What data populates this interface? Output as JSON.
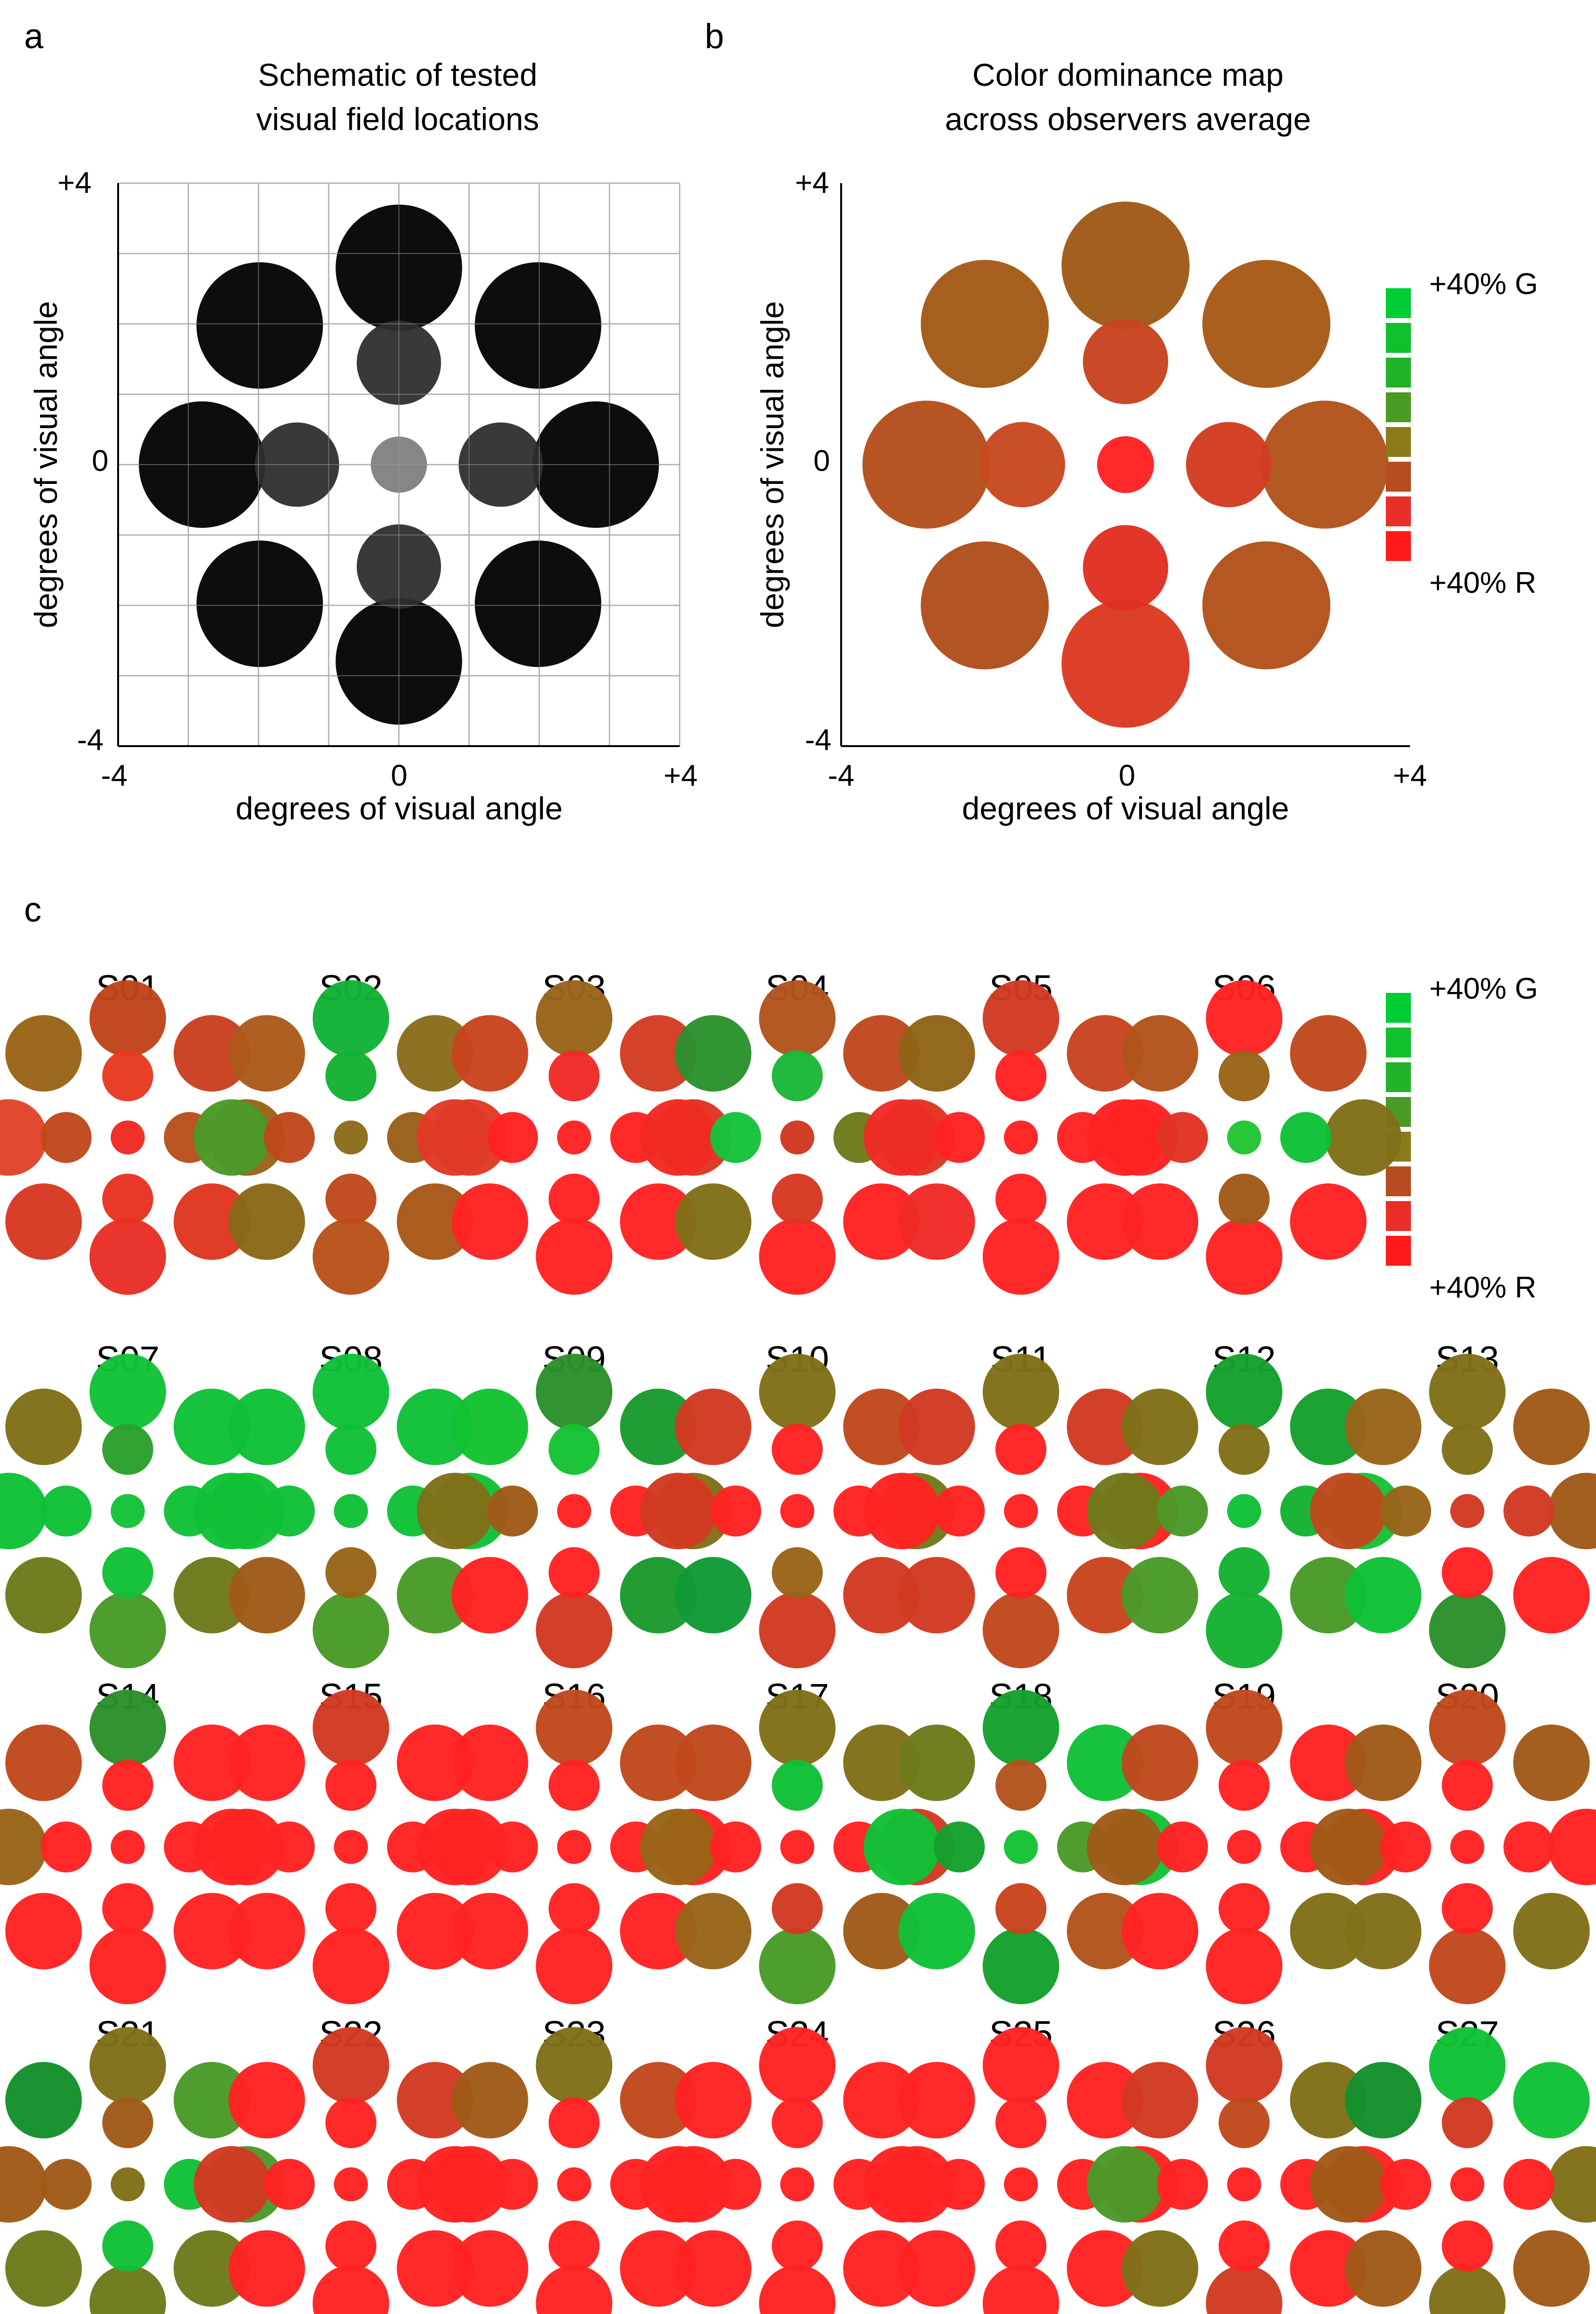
{
  "panels": {
    "a": {
      "letter": "a",
      "title_line1": "Schematic of tested",
      "title_line2": "visual field locations",
      "xlabel": "degrees of visual angle",
      "ylabel": "degrees of visual angle",
      "x_ticks": [
        "-4",
        "0",
        "+4"
      ],
      "y_ticks": [
        "+4",
        "0",
        "-4"
      ]
    },
    "b": {
      "letter": "b",
      "title_line1": "Color dominance map",
      "title_line2": "across observers average",
      "xlabel": "degrees of visual angle",
      "ylabel": "degrees of visual angle",
      "x_ticks": [
        "-4",
        "0",
        "+4"
      ],
      "y_ticks": [
        "+4",
        "0",
        "-4"
      ]
    },
    "c": {
      "letter": "c"
    }
  },
  "legend": {
    "top_label": "+40% G",
    "bottom_label": "+40% R",
    "colors": [
      "#00cc33",
      "#10c02c",
      "#22b22a",
      "#4a9a24",
      "#8a7a1a",
      "#b84c20",
      "#e82e26",
      "#ff1a1a"
    ]
  },
  "chart_data": {
    "type": "dominance_map",
    "axis_range_deg": [
      -4,
      4
    ],
    "location_order": [
      "outer_N",
      "outer_NE",
      "outer_E",
      "outer_SE",
      "outer_S",
      "outer_SW",
      "outer_W",
      "outer_NW",
      "inner_N",
      "inner_E",
      "inner_S",
      "inner_W",
      "center"
    ],
    "locations": [
      {
        "name": "outer_N",
        "x_deg": 0.0,
        "y_deg": 2.8,
        "radius_deg": 0.9
      },
      {
        "name": "outer_NE",
        "x_deg": 1.98,
        "y_deg": 1.98,
        "radius_deg": 0.9
      },
      {
        "name": "outer_E",
        "x_deg": 2.8,
        "y_deg": 0.0,
        "radius_deg": 0.9
      },
      {
        "name": "outer_SE",
        "x_deg": 1.98,
        "y_deg": -1.98,
        "radius_deg": 0.9
      },
      {
        "name": "outer_S",
        "x_deg": 0.0,
        "y_deg": -2.8,
        "radius_deg": 0.9
      },
      {
        "name": "outer_SW",
        "x_deg": -1.98,
        "y_deg": -1.98,
        "radius_deg": 0.9
      },
      {
        "name": "outer_W",
        "x_deg": -2.8,
        "y_deg": 0.0,
        "radius_deg": 0.9
      },
      {
        "name": "outer_NW",
        "x_deg": -1.98,
        "y_deg": 1.98,
        "radius_deg": 0.9
      },
      {
        "name": "inner_N",
        "x_deg": 0.0,
        "y_deg": 1.45,
        "radius_deg": 0.6
      },
      {
        "name": "inner_E",
        "x_deg": 1.45,
        "y_deg": 0.0,
        "radius_deg": 0.6
      },
      {
        "name": "inner_S",
        "x_deg": 0.0,
        "y_deg": -1.45,
        "radius_deg": 0.6
      },
      {
        "name": "inner_W",
        "x_deg": -1.45,
        "y_deg": 0.0,
        "radius_deg": 0.6
      },
      {
        "name": "center",
        "x_deg": 0.0,
        "y_deg": 0.0,
        "radius_deg": 0.4
      }
    ],
    "schematic_gray": [
      "#000000",
      "#000000",
      "#000000",
      "#000000",
      "#000000",
      "#000000",
      "#000000",
      "#000000",
      "#2e2e2e",
      "#2e2e2e",
      "#2e2e2e",
      "#2e2e2e",
      "#7f7f7f"
    ],
    "average": [
      "#a05a18",
      "#a85a18",
      "#b2541c",
      "#b2521c",
      "#dc3a22",
      "#b04e1c",
      "#b4501c",
      "#a45a18",
      "#c84420",
      "#d23c20",
      "#e03022",
      "#c84820",
      "#ff2222"
    ],
    "subjects": [
      {
        "id": "S01",
        "colors": [
          "#c0441c",
          "#c84020",
          "#986418",
          "#e03620",
          "#e82e26",
          "#d83822",
          "#e0442a",
          "#9a6418",
          "#e83a22",
          "#b8501c",
          "#e83222",
          "#c0481c",
          "#f02a22"
        ]
      },
      {
        "id": "S02",
        "colors": [
          "#12b236",
          "#8a6c1c",
          "#e03a26",
          "#a85818",
          "#b8521c",
          "#8a6818",
          "#4a9a28",
          "#ac5a1a",
          "#14b232",
          "#9a5e1a",
          "#c0481c",
          "#c0481c",
          "#8a6c1a"
        ]
      },
      {
        "id": "S03",
        "colors": [
          "#986418",
          "#d23c22",
          "#e03424",
          "#ff2222",
          "#ff2222",
          "#ff2222",
          "#e03a26",
          "#c8441e",
          "#f02a26",
          "#ff2222",
          "#ff2222",
          "#ff2222",
          "#ff2222"
        ]
      },
      {
        "id": "S04",
        "colors": [
          "#b2541c",
          "#c0481c",
          "#e03424",
          "#ff2222",
          "#ff2222",
          "#807018",
          "#f02a22",
          "#2a922c",
          "#1ab838",
          "#6e7a1c",
          "#d83822",
          "#16c23c",
          "#d03820"
        ]
      },
      {
        "id": "S05",
        "colors": [
          "#d23a22",
          "#c84420",
          "#ff2222",
          "#ff2222",
          "#ff2222",
          "#f02a26",
          "#f02a26",
          "#906418",
          "#ff2222",
          "#ff2222",
          "#ff2222",
          "#ff2222",
          "#ff2222"
        ]
      },
      {
        "id": "S06",
        "colors": [
          "#ff2222",
          "#c0481c",
          "#807018",
          "#ff2222",
          "#ff2222",
          "#ff2222",
          "#ff2222",
          "#b2541c",
          "#9a6418",
          "#10c036",
          "#a05a18",
          "#e03424",
          "#22c432"
        ]
      },
      {
        "id": "S07",
        "colors": [
          "#10c236",
          "#10c036",
          "#10c036",
          "#6e7a1c",
          "#4a9a28",
          "#6e7a1c",
          "#10c036",
          "#807018",
          "#2aa02c",
          "#10c036",
          "#10c036",
          "#10c036",
          "#14c236"
        ]
      },
      {
        "id": "S08",
        "colors": [
          "#10c036",
          "#10c036",
          "#10c036",
          "#4a9a28",
          "#4a9a28",
          "#a05a18",
          "#10c036",
          "#10c036",
          "#10c036",
          "#10c036",
          "#986418",
          "#10c036",
          "#10c036"
        ]
      },
      {
        "id": "S09",
        "colors": [
          "#2a902a",
          "#1a9a30",
          "#807018",
          "#1a9a2c",
          "#d23a22",
          "#ff2222",
          "#807018",
          "#14c230",
          "#14c232",
          "#ff2222",
          "#ff2222",
          "#a05a18",
          "#ff2222"
        ]
      },
      {
        "id": "S10",
        "colors": [
          "#807018",
          "#c0481c",
          "#6e7a1c",
          "#d23a22",
          "#d23a22",
          "#109a36",
          "#d23a22",
          "#d23a22",
          "#ff2222",
          "#ff2222",
          "#986418",
          "#ff2222",
          "#ff2222"
        ]
      },
      {
        "id": "S11",
        "colors": [
          "#807018",
          "#d23a22",
          "#ff2222",
          "#c8441e",
          "#c0481c",
          "#d23a22",
          "#ff2222",
          "#d23a22",
          "#ff2222",
          "#ff2222",
          "#ff2222",
          "#ff2222",
          "#ff2222"
        ]
      },
      {
        "id": "S12",
        "colors": [
          "#14a02c",
          "#14a02c",
          "#14c234",
          "#4a9a28",
          "#14b232",
          "#4a9a28",
          "#6e7a1c",
          "#807018",
          "#807018",
          "#14b232",
          "#14b232",
          "#4a9a28",
          "#10c036"
        ]
      },
      {
        "id": "S13",
        "colors": [
          "#807018",
          "#a05a18",
          "#a05a18",
          "#ff2222",
          "#2a902a",
          "#10c036",
          "#c0481c",
          "#986418",
          "#807018",
          "#d23a22",
          "#ff2222",
          "#986418",
          "#d23a22"
        ]
      },
      {
        "id": "S14",
        "colors": [
          "#2a902a",
          "#ff2222",
          "#ff2222",
          "#ff2222",
          "#ff2222",
          "#ff2222",
          "#986418",
          "#c0481c",
          "#ff2222",
          "#ff2222",
          "#ff2222",
          "#ff2222",
          "#ff2222"
        ]
      },
      {
        "id": "S15",
        "colors": [
          "#d23a22",
          "#ff2222",
          "#ff2222",
          "#ff2222",
          "#ff2222",
          "#ff2222",
          "#ff2222",
          "#ff2222",
          "#ff2222",
          "#ff2222",
          "#ff2222",
          "#ff2222",
          "#ff2222"
        ]
      },
      {
        "id": "S16",
        "colors": [
          "#c0481c",
          "#c0481c",
          "#ff2222",
          "#ff2222",
          "#ff2222",
          "#ff2222",
          "#ff2222",
          "#ff2222",
          "#ff2222",
          "#ff2222",
          "#ff2222",
          "#ff2222",
          "#ff2222"
        ]
      },
      {
        "id": "S17",
        "colors": [
          "#807018",
          "#807018",
          "#d23a22",
          "#a05a18",
          "#4a9a28",
          "#986418",
          "#986418",
          "#c0481c",
          "#10c036",
          "#ff2222",
          "#d23a22",
          "#ff2222",
          "#ff2222"
        ]
      },
      {
        "id": "S18",
        "colors": [
          "#14a02c",
          "#10c036",
          "#14c234",
          "#b2541c",
          "#14a02c",
          "#10c036",
          "#10c036",
          "#6e7a1c",
          "#b2541c",
          "#4a9a28",
          "#c8441e",
          "#14a02c",
          "#14c234"
        ]
      },
      {
        "id": "S19",
        "colors": [
          "#c0481c",
          "#ff2222",
          "#ff2222",
          "#807018",
          "#ff2222",
          "#ff2222",
          "#a05a18",
          "#c0481c",
          "#ff2222",
          "#ff2222",
          "#ff2222",
          "#ff2222",
          "#ff2222"
        ]
      },
      {
        "id": "S20",
        "colors": [
          "#c0481c",
          "#a05a18",
          "#ff2222",
          "#807018",
          "#c0481c",
          "#807018",
          "#a05a18",
          "#a05a18",
          "#ff2222",
          "#ff2222",
          "#ff2222",
          "#ff2222",
          "#ff2222"
        ]
      },
      {
        "id": "S21",
        "colors": [
          "#807018",
          "#4a9a28",
          "#4a9a28",
          "#6e7a1c",
          "#6e7a1c",
          "#6e7a1c",
          "#a05a18",
          "#14902a",
          "#a05a18",
          "#10c036",
          "#10c036",
          "#a05a18",
          "#807018"
        ]
      },
      {
        "id": "S22",
        "colors": [
          "#d23a22",
          "#d23a22",
          "#ff2222",
          "#ff2222",
          "#ff2222",
          "#ff2222",
          "#d23a22",
          "#ff2222",
          "#ff2222",
          "#ff2222",
          "#ff2222",
          "#ff2222",
          "#ff2222"
        ]
      },
      {
        "id": "S23",
        "colors": [
          "#807018",
          "#c0481c",
          "#ff2222",
          "#ff2222",
          "#ff2222",
          "#ff2222",
          "#ff2222",
          "#a05a18",
          "#ff2222",
          "#ff2222",
          "#ff2222",
          "#ff2222",
          "#ff2222"
        ]
      },
      {
        "id": "S24",
        "colors": [
          "#ff2222",
          "#ff2222",
          "#ff2222",
          "#ff2222",
          "#ff2222",
          "#ff2222",
          "#ff2222",
          "#ff2222",
          "#ff2222",
          "#ff2222",
          "#ff2222",
          "#ff2222",
          "#ff2222"
        ]
      },
      {
        "id": "S25",
        "colors": [
          "#ff2222",
          "#ff2222",
          "#ff2222",
          "#ff2222",
          "#ff2222",
          "#ff2222",
          "#ff2222",
          "#ff2222",
          "#ff2222",
          "#ff2222",
          "#ff2222",
          "#ff2222",
          "#ff2222"
        ]
      },
      {
        "id": "S26",
        "colors": [
          "#d23a22",
          "#807018",
          "#ff2222",
          "#ff2222",
          "#d23a22",
          "#807018",
          "#4a9a28",
          "#d23a22",
          "#c0481c",
          "#ff2222",
          "#ff2222",
          "#ff2222",
          "#ff2222"
        ]
      },
      {
        "id": "S27",
        "colors": [
          "#10c036",
          "#10c036",
          "#807018",
          "#a05a18",
          "#807018",
          "#a05a18",
          "#a05a18",
          "#14902a",
          "#d23a22",
          "#ff2222",
          "#ff2222",
          "#ff2222",
          "#ff2222"
        ]
      }
    ]
  }
}
